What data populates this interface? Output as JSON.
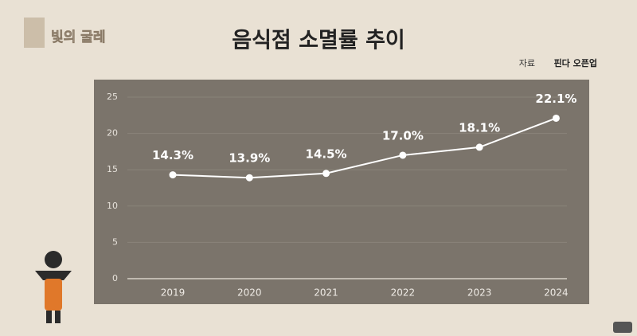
{
  "branding": {
    "program": "빛의 굴레"
  },
  "chart_data": {
    "type": "line",
    "title": "음식점 소멸률 추이",
    "source_label": "자료",
    "source": "핀다 오픈업",
    "categories": [
      "2019",
      "2020",
      "2021",
      "2022",
      "2023",
      "2024"
    ],
    "series": [
      {
        "color": "#ffffff",
        "values": [
          14.3,
          13.9,
          14.5,
          17.0,
          18.1,
          22.1
        ],
        "value_labels": [
          "14.3%",
          "13.9%",
          "14.5%",
          "17.0%",
          "18.1%",
          "22.1%"
        ]
      }
    ],
    "ylim": [
      0,
      25
    ],
    "yticks": [
      0,
      5,
      10,
      15,
      20,
      25
    ],
    "grid": true
  }
}
